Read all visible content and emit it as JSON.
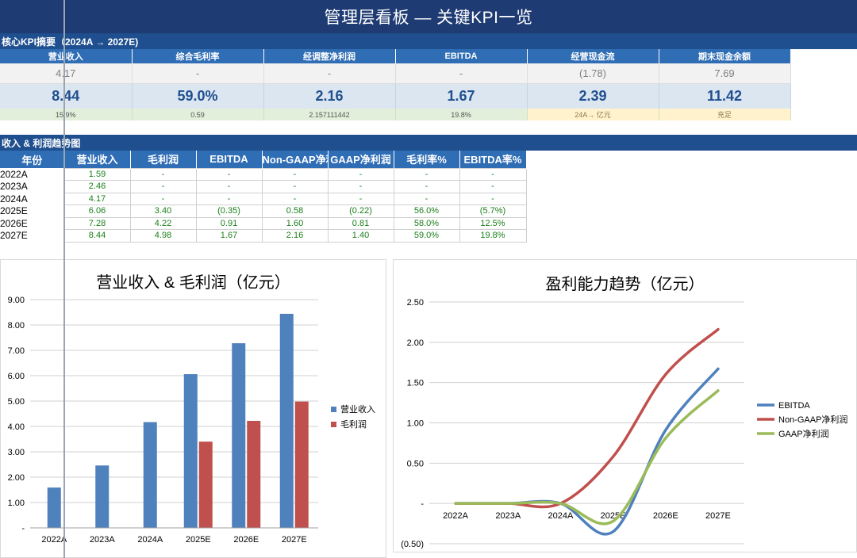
{
  "title": "管理层看板 — 关键KPI一览",
  "kpi_section": {
    "label": "核心KPI摘要（2024A → 2027E)",
    "headers": [
      "营业收入",
      "综合毛利率",
      "经调整净利润",
      "EBITDA",
      "经营现金流",
      "期末现金余额"
    ],
    "row_2024": [
      "4.17",
      "-",
      "-",
      "-",
      "(1.78)",
      "7.69"
    ],
    "row_2027": [
      "8.44",
      "59.0%",
      "2.16",
      "1.67",
      "2.39",
      "11.42"
    ],
    "row_note": [
      "15.9%",
      "0.59",
      "2.157111442",
      "19.8%",
      "24A→ 亿元",
      "充足"
    ]
  },
  "trend_section": {
    "label": "收入 & 利润趋势图",
    "headers": [
      "年份",
      "营业收入",
      "毛利润",
      "EBITDA",
      "Non-GAAP净利",
      "GAAP净利润",
      "毛利率%",
      "EBITDA率%"
    ],
    "rows": [
      [
        "2022A",
        "1.59",
        "-",
        "-",
        "-",
        "-",
        "-",
        "-"
      ],
      [
        "2023A",
        "2.46",
        "-",
        "-",
        "-",
        "-",
        "-",
        "-"
      ],
      [
        "2024A",
        "4.17",
        "-",
        "-",
        "-",
        "-",
        "-",
        "-"
      ],
      [
        "2025E",
        "6.06",
        "3.40",
        "(0.35)",
        "0.58",
        "(0.22)",
        "56.0%",
        "(5.7%)"
      ],
      [
        "2026E",
        "7.28",
        "4.22",
        "0.91",
        "1.60",
        "0.81",
        "58.0%",
        "12.5%"
      ],
      [
        "2027E",
        "8.44",
        "4.98",
        "1.67",
        "2.16",
        "1.40",
        "59.0%",
        "19.8%"
      ]
    ]
  },
  "chart_data": [
    {
      "type": "bar",
      "title": "营业收入 & 毛利润（亿元）",
      "categories": [
        "2022A",
        "2023A",
        "2024A",
        "2025E",
        "2026E",
        "2027E"
      ],
      "ylim": [
        0,
        9
      ],
      "ytick_labels": [
        "-",
        "1.00",
        "2.00",
        "3.00",
        "4.00",
        "5.00",
        "6.00",
        "7.00",
        "8.00",
        "9.00"
      ],
      "grid": true,
      "legend": "right",
      "series": [
        {
          "name": "营业收入",
          "color": "#4f81bd",
          "values": [
            1.59,
            2.46,
            4.17,
            6.06,
            7.28,
            8.44
          ]
        },
        {
          "name": "毛利润",
          "color": "#c0504d",
          "values": [
            0,
            0,
            0,
            3.4,
            4.22,
            4.98
          ]
        }
      ]
    },
    {
      "type": "line",
      "title": "盈利能力趋势（亿元）",
      "categories": [
        "2022A",
        "2023A",
        "2024A",
        "2025E",
        "2026E",
        "2027E"
      ],
      "ylim": [
        -0.5,
        2.5
      ],
      "ytick_labels": [
        "(0.50)",
        "-",
        "0.50",
        "1.00",
        "1.50",
        "2.00",
        "2.50"
      ],
      "grid": true,
      "legend": "right",
      "series": [
        {
          "name": "EBITDA",
          "color": "#4f81bd",
          "values": [
            0,
            0,
            0,
            -0.35,
            0.91,
            1.67
          ]
        },
        {
          "name": "Non-GAAP净利润",
          "color": "#c0504d",
          "values": [
            0,
            0,
            0,
            0.58,
            1.6,
            2.16
          ]
        },
        {
          "name": "GAAP净利润",
          "color": "#9bbb59",
          "values": [
            0,
            0,
            0,
            -0.22,
            0.81,
            1.4
          ]
        }
      ]
    }
  ]
}
